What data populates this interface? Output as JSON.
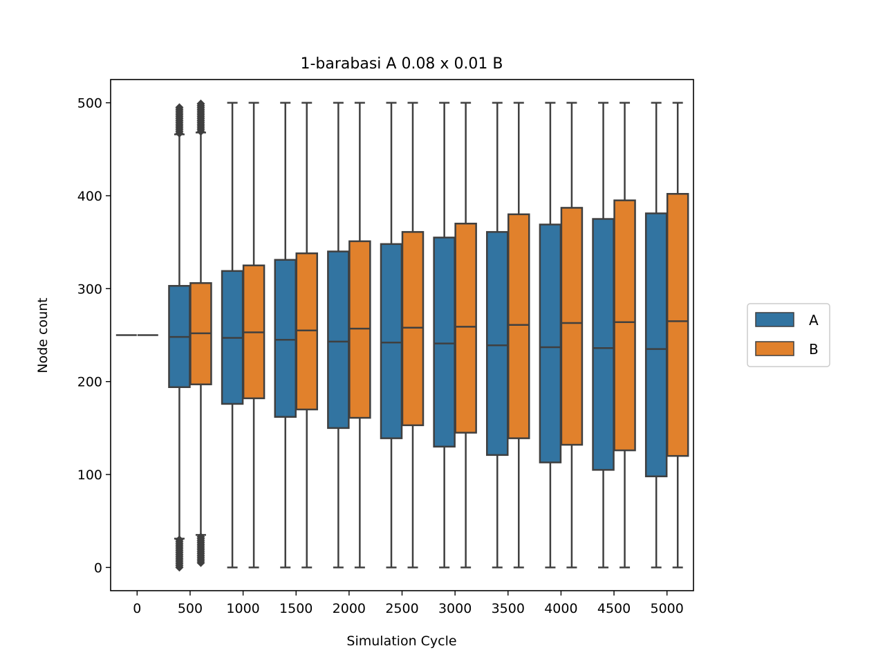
{
  "chart_data": {
    "type": "boxplot",
    "title": "1-barabasi A 0.08 x 0.01 B",
    "xlabel": "Simulation Cycle",
    "ylabel": "Node count",
    "ylim": [
      -25,
      525
    ],
    "yticks": [
      0,
      100,
      200,
      300,
      400,
      500
    ],
    "categories": [
      "0",
      "500",
      "1000",
      "1500",
      "2000",
      "2500",
      "3000",
      "3500",
      "4000",
      "4500",
      "5000"
    ],
    "legend": {
      "placement": "center-right outside",
      "entries": [
        "A",
        "B"
      ]
    },
    "grid": false,
    "series": [
      {
        "name": "A",
        "color": "#3274a1",
        "boxes": [
          {
            "min": 250,
            "q1": 250,
            "median": 250,
            "q3": 250,
            "max": 250
          },
          {
            "min": 31,
            "q1": 194,
            "median": 248,
            "q3": 303,
            "max": 466,
            "fliers_low": [
              30,
              0
            ],
            "fliers_high": [
              467,
              496
            ]
          },
          {
            "min": 0,
            "q1": 176,
            "median": 247,
            "q3": 319,
            "max": 500
          },
          {
            "min": 0,
            "q1": 162,
            "median": 245,
            "q3": 331,
            "max": 500
          },
          {
            "min": 0,
            "q1": 150,
            "median": 243,
            "q3": 340,
            "max": 500
          },
          {
            "min": 0,
            "q1": 139,
            "median": 242,
            "q3": 348,
            "max": 500
          },
          {
            "min": 0,
            "q1": 130,
            "median": 241,
            "q3": 355,
            "max": 500
          },
          {
            "min": 0,
            "q1": 121,
            "median": 239,
            "q3": 361,
            "max": 500
          },
          {
            "min": 0,
            "q1": 113,
            "median": 237,
            "q3": 369,
            "max": 500
          },
          {
            "min": 0,
            "q1": 105,
            "median": 236,
            "q3": 375,
            "max": 500
          },
          {
            "min": 0,
            "q1": 98,
            "median": 235,
            "q3": 381,
            "max": 500
          }
        ]
      },
      {
        "name": "B",
        "color": "#e1812c",
        "boxes": [
          {
            "min": 250,
            "q1": 250,
            "median": 250,
            "q3": 250,
            "max": 250
          },
          {
            "min": 35,
            "q1": 197,
            "median": 252,
            "q3": 306,
            "max": 468,
            "fliers_low": [
              34,
              5
            ],
            "fliers_high": [
              469,
              500
            ]
          },
          {
            "min": 0,
            "q1": 182,
            "median": 253,
            "q3": 325,
            "max": 500
          },
          {
            "min": 0,
            "q1": 170,
            "median": 255,
            "q3": 338,
            "max": 500
          },
          {
            "min": 0,
            "q1": 161,
            "median": 257,
            "q3": 351,
            "max": 500
          },
          {
            "min": 0,
            "q1": 153,
            "median": 258,
            "q3": 361,
            "max": 500
          },
          {
            "min": 0,
            "q1": 145,
            "median": 259,
            "q3": 370,
            "max": 500
          },
          {
            "min": 0,
            "q1": 139,
            "median": 261,
            "q3": 380,
            "max": 500
          },
          {
            "min": 0,
            "q1": 132,
            "median": 263,
            "q3": 387,
            "max": 500
          },
          {
            "min": 0,
            "q1": 126,
            "median": 264,
            "q3": 395,
            "max": 500
          },
          {
            "min": 0,
            "q1": 120,
            "median": 265,
            "q3": 402,
            "max": 500
          }
        ]
      }
    ]
  }
}
